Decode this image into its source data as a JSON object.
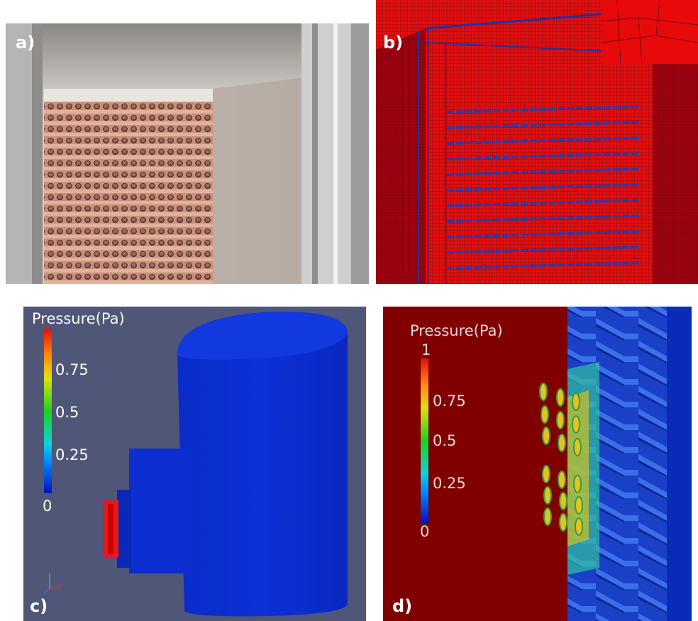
{
  "panels": [
    {
      "label": "a)"
    },
    {
      "label": "b)"
    },
    {
      "label": "c)",
      "colorbar": {
        "title": "Pressure(Pa)",
        "ticks": [
          0.75,
          0.5,
          0.25,
          0
        ]
      }
    },
    {
      "label": "d)",
      "colorbar": {
        "title": "Pressure(Pa)",
        "ticks": [
          1,
          0.75,
          0.5,
          0.25,
          0
        ]
      }
    }
  ]
}
